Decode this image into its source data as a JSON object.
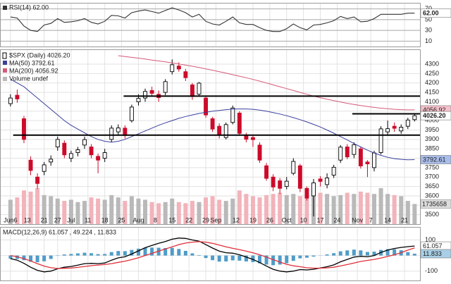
{
  "chart_data": [
    {
      "type": "line",
      "series": [
        {
          "name": "RSI(14) 62.00",
          "color": "#333333",
          "values": [
            55,
            53,
            38,
            30,
            28,
            40,
            43,
            52,
            45,
            46,
            48,
            52,
            45,
            42,
            47,
            58,
            57,
            53,
            63,
            66,
            68,
            65,
            62,
            67,
            72,
            68,
            63,
            55,
            60,
            47,
            42,
            40,
            47,
            55,
            44,
            41,
            41,
            35,
            30,
            28,
            28,
            33,
            42,
            35,
            31,
            40,
            41,
            44,
            48,
            56,
            52,
            55,
            46,
            47,
            52,
            60,
            60,
            60,
            60,
            62,
            62
          ]
        }
      ],
      "ylim": [
        0,
        80
      ],
      "yticks": [
        10,
        30,
        50,
        70
      ],
      "grid": true,
      "tags": [
        {
          "value": 62,
          "label": "62.00",
          "color": "#ffffff"
        }
      ]
    },
    {
      "type": "candlestick",
      "title": "$SPX (Daily) 4026.20",
      "x": [
        0,
        2,
        4,
        6,
        8,
        10,
        12,
        14,
        16,
        18,
        20,
        22,
        24,
        26,
        28,
        30,
        32,
        34,
        36,
        38,
        40,
        42,
        44,
        46,
        48,
        50,
        52,
        54,
        56,
        58,
        60,
        62,
        64,
        66,
        68,
        70,
        72,
        74,
        76,
        78,
        80,
        82,
        84,
        86,
        88,
        90,
        92,
        94,
        96,
        98,
        100,
        102,
        104,
        106,
        108,
        110,
        112,
        114,
        116,
        118,
        120
      ],
      "xlim": [
        -2.9,
        121.6
      ],
      "xticks": [
        {
          "value": 0,
          "label": "Jun6"
        },
        {
          "value": 5,
          "label": "13"
        },
        {
          "value": 10,
          "label": "21"
        },
        {
          "value": 14,
          "label": "27"
        },
        {
          "value": 18,
          "label": "Jul"
        },
        {
          "value": 23,
          "label": "11"
        },
        {
          "value": 28,
          "label": "18"
        },
        {
          "value": 33,
          "label": "25"
        },
        {
          "value": 38,
          "label": "Aug"
        },
        {
          "value": 43,
          "label": "8"
        },
        {
          "value": 48,
          "label": "15"
        },
        {
          "value": 53,
          "label": "22"
        },
        {
          "value": 58,
          "label": "29"
        },
        {
          "value": 61,
          "label": "Sep"
        },
        {
          "value": 67,
          "label": "12"
        },
        {
          "value": 72,
          "label": "19"
        },
        {
          "value": 77,
          "label": "26"
        },
        {
          "value": 82,
          "label": "Oct"
        },
        {
          "value": 87,
          "label": "10"
        },
        {
          "value": 92,
          "label": "17"
        },
        {
          "value": 97,
          "label": "24"
        },
        {
          "value": 103,
          "label": "Nov"
        },
        {
          "value": 107,
          "label": "7"
        },
        {
          "value": 112,
          "label": "14"
        },
        {
          "value": 117,
          "label": "21"
        }
      ],
      "open": [
        4090,
        4135,
        4010,
        3790,
        3700,
        3730,
        3780,
        3860,
        3880,
        3800,
        3830,
        3870,
        3860,
        3810,
        3800,
        3900,
        3940,
        3960,
        4000,
        4100,
        4120,
        4160,
        4140,
        4150,
        4260,
        4290,
        4260,
        4190,
        4140,
        4120,
        4010,
        3970,
        3910,
        3990,
        4040,
        3920,
        3910,
        3870,
        3760,
        3700,
        3680,
        3650,
        3720,
        3760,
        3640,
        3600,
        3690,
        3660,
        3710,
        3790,
        3860,
        3820,
        3850,
        3780,
        3750,
        3830,
        3940,
        3970,
        3945,
        3970,
        4005
      ],
      "high": [
        4140,
        4165,
        4025,
        3810,
        3720,
        3780,
        3815,
        3915,
        3895,
        3840,
        3860,
        3915,
        3875,
        3825,
        3850,
        3975,
        3980,
        3975,
        4085,
        4140,
        4170,
        4180,
        4160,
        4220,
        4325,
        4310,
        4275,
        4200,
        4205,
        4130,
        4020,
        3985,
        3990,
        4080,
        4050,
        3935,
        3920,
        3885,
        3775,
        3715,
        3695,
        3700,
        3800,
        3770,
        3650,
        3690,
        3705,
        3720,
        3765,
        3870,
        3875,
        3885,
        3860,
        3790,
        3840,
        3970,
        4000,
        3990,
        3980,
        4015,
        4035
      ],
      "low": [
        4075,
        4095,
        3880,
        3710,
        3637,
        3710,
        3760,
        3840,
        3800,
        3780,
        3810,
        3850,
        3800,
        3720,
        3780,
        3885,
        3920,
        3905,
        3990,
        4080,
        4100,
        4130,
        4100,
        4135,
        4245,
        4260,
        4210,
        4110,
        4130,
        4015,
        3940,
        3905,
        3900,
        3980,
        3920,
        3885,
        3860,
        3775,
        3680,
        3625,
        3610,
        3635,
        3710,
        3620,
        3575,
        3491,
        3650,
        3640,
        3695,
        3775,
        3795,
        3800,
        3745,
        3700,
        3730,
        3820,
        3920,
        3940,
        3930,
        3955,
        3995
      ],
      "close": [
        4120,
        4115,
        3900,
        3735,
        3666,
        3765,
        3795,
        3900,
        3818,
        3825,
        3845,
        3899,
        3818,
        3790,
        3830,
        3960,
        3961,
        3921,
        4072,
        4118,
        4155,
        4145,
        4122,
        4207,
        4297,
        4274,
        4228,
        4128,
        4199,
        4030,
        3955,
        3924,
        3979,
        4067,
        3932,
        3901,
        3899,
        3790,
        3693,
        3647,
        3640,
        3678,
        3783,
        3640,
        3588,
        3669,
        3677,
        3695,
        3752,
        3859,
        3807,
        3872,
        3759,
        3770,
        3828,
        3956,
        3957,
        3959,
        3965,
        4003,
        4026.2
      ],
      "candle_colors": {
        "up": "#000000",
        "down": "#cc0a2a"
      },
      "series": [
        {
          "name": "MA(50) 3792.61",
          "color": "#3c3f9c",
          "values": [
            4220,
            4200,
            4180,
            4150,
            4120,
            4090,
            4060,
            4030,
            4000,
            3975,
            3955,
            3935,
            3915,
            3900,
            3890,
            3885,
            3890,
            3900,
            3915,
            3930,
            3945,
            3960,
            3975,
            3988,
            4000,
            4012,
            4022,
            4030,
            4038,
            4044,
            4050,
            4054,
            4058,
            4061,
            4062,
            4062,
            4060,
            4056,
            4050,
            4043,
            4035,
            4026,
            4016,
            4005,
            3993,
            3980,
            3966,
            3950,
            3933,
            3915,
            3897,
            3878,
            3860,
            3843,
            3828,
            3815,
            3805,
            3798,
            3794,
            3792,
            3792.61
          ]
        },
        {
          "name": "MA(200) 4056.92",
          "color": "#d45a78",
          "values": [
            null,
            null,
            null,
            null,
            null,
            null,
            null,
            null,
            null,
            null,
            null,
            null,
            null,
            null,
            null,
            null,
            4345,
            4340,
            4336,
            4332,
            4327,
            4322,
            4317,
            4312,
            4307,
            4301,
            4295,
            4289,
            4282,
            4275,
            4268,
            4260,
            4252,
            4244,
            4236,
            4228,
            4219,
            4210,
            4200,
            4190,
            4180,
            4170,
            4160,
            4150,
            4140,
            4130,
            4122,
            4114,
            4106,
            4099,
            4092,
            4086,
            4080,
            4075,
            4070,
            4066,
            4063,
            4060,
            4058,
            4057,
            4056.92
          ]
        }
      ],
      "volume": {
        "name": "Volume undef",
        "colors": {
          "up": "#b9b9b9",
          "down": "#f2b3bb"
        },
        "ylim": [
          0,
          15000000
        ],
        "values": [
          2100000,
          2300000,
          2900000,
          2800000,
          3100000,
          2500000,
          2400000,
          2200000,
          2000000,
          2100000,
          1900000,
          2000000,
          2300000,
          2200000,
          2100000,
          2500000,
          2300000,
          2000000,
          2400000,
          2200000,
          2100000,
          1900000,
          1800000,
          1900000,
          2200000,
          1900000,
          1800000,
          2000000,
          1900000,
          2300000,
          2400000,
          2100000,
          2000000,
          2200000,
          2900000,
          2600000,
          2400000,
          2300000,
          2500000,
          2600000,
          2700000,
          2500000,
          2600000,
          2400000,
          2500000,
          3000000,
          2700000,
          2600000,
          2400000,
          2500000,
          2700000,
          2600000,
          2800000,
          2700000,
          2600000,
          3100000,
          2600000,
          2500000,
          2400000,
          2000000,
          1735658
        ],
        "tag": {
          "value": 1735658,
          "color": "#dddddd"
        }
      },
      "hlines": [
        {
          "value": 4130,
          "from": 33.6
        },
        {
          "value": 3923,
          "from": 0.8
        },
        {
          "value": 4036,
          "from": 101.5
        }
      ],
      "hline_color": "#000000",
      "ylim": [
        3450,
        4375
      ],
      "yticks": [
        3500,
        3550,
        3600,
        3650,
        3700,
        3750,
        3800,
        3850,
        3900,
        3950,
        4000,
        4050,
        4100,
        4150,
        4200,
        4250,
        4300
      ],
      "grid": true,
      "tags": [
        {
          "value": 4056.92,
          "color": "#f5c0ca"
        },
        {
          "value": 3792.61,
          "color": "#a9bdea"
        },
        {
          "value": 4026.2,
          "label": "4026.20",
          "color": "#ffffff"
        }
      ]
    },
    {
      "type": "macd",
      "series": [
        {
          "name": "MACD(12,26,9) 61.057",
          "color": "#000000",
          "values": [
            -20,
            -30,
            -50,
            -75,
            -95,
            -105,
            -100,
            -85,
            -75,
            -70,
            -62,
            -52,
            -50,
            -52,
            -48,
            -30,
            -15,
            -8,
            10,
            30,
            50,
            65,
            78,
            90,
            105,
            112,
            110,
            100,
            92,
            70,
            48,
            28,
            18,
            15,
            5,
            -10,
            -25,
            -45,
            -68,
            -88,
            -100,
            -105,
            -100,
            -90,
            -92,
            -88,
            -80,
            -72,
            -60,
            -40,
            -25,
            -10,
            -5,
            -8,
            0,
            20,
            35,
            45,
            52,
            57,
            61.057
          ]
        },
        {
          "name": ", 49.224",
          "color": "#e0303a",
          "values": [
            0,
            -8,
            -20,
            -35,
            -52,
            -68,
            -78,
            -83,
            -82,
            -80,
            -76,
            -70,
            -65,
            -61,
            -58,
            -52,
            -44,
            -36,
            -26,
            -14,
            0,
            14,
            28,
            42,
            56,
            70,
            80,
            86,
            89,
            86,
            78,
            67,
            56,
            46,
            38,
            28,
            17,
            5,
            -10,
            -26,
            -42,
            -56,
            -66,
            -72,
            -78,
            -81,
            -81,
            -79,
            -75,
            -67,
            -58,
            -48,
            -38,
            -31,
            -25,
            -16,
            -6,
            5,
            18,
            35,
            49.224
          ]
        },
        {
          "name": ", 11.833",
          "color": "#4f9cc8",
          "kind": "histogram",
          "values": [
            -20,
            -22,
            -30,
            -40,
            -43,
            -37,
            -22,
            -2,
            7,
            10,
            14,
            18,
            15,
            9,
            10,
            22,
            29,
            28,
            36,
            44,
            50,
            51,
            50,
            48,
            49,
            42,
            30,
            14,
            3,
            -16,
            -30,
            -39,
            -38,
            -31,
            -33,
            -38,
            -42,
            -50,
            -58,
            -62,
            -58,
            -49,
            -34,
            -18,
            -14,
            -7,
            1,
            7,
            15,
            27,
            33,
            38,
            33,
            23,
            25,
            36,
            41,
            40,
            34,
            22,
            11.833
          ]
        }
      ],
      "ylim": [
        -160,
        179
      ],
      "yticks": [
        -100,
        0,
        100
      ],
      "grid": true,
      "tags": [
        {
          "value": 61.057,
          "color": "#ffffff"
        },
        {
          "value": 11.833,
          "color": "#a9cfe6"
        }
      ]
    }
  ]
}
